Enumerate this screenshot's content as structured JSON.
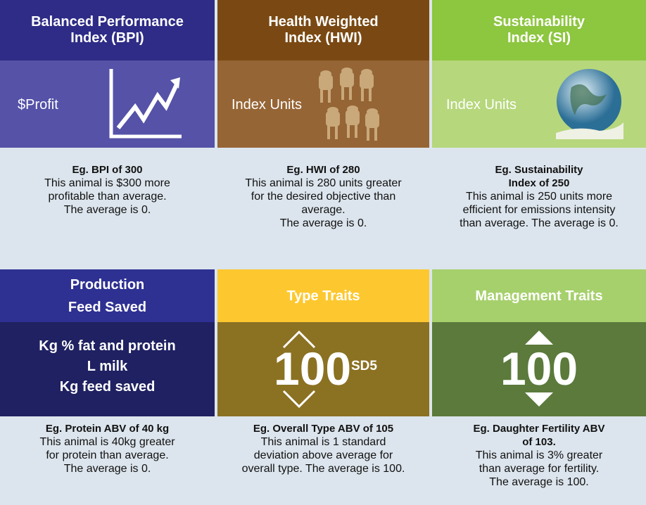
{
  "cards": [
    {
      "title": [
        "Balanced Performance",
        "Index (BPI)"
      ],
      "unit": "$Profit",
      "example": [
        "Eg. BPI of 300"
      ],
      "description": [
        "This animal is $300 more",
        "profitable than average.",
        "The average is 0."
      ]
    },
    {
      "title": [
        "Health Weighted",
        "Index (HWI)"
      ],
      "unit": "Index Units",
      "example": [
        "Eg. HWI of 280"
      ],
      "description": [
        "This animal is 280 units greater",
        "for the desired objective than",
        "average.",
        "The average is 0."
      ]
    },
    {
      "title": [
        "Sustainability",
        "Index (SI)"
      ],
      "unit": "Index Units",
      "example": [
        "Eg. Sustainability",
        "Index of 250"
      ],
      "description": [
        "This animal is 250 units more",
        "efficient for emissions intensity",
        "than average. The average is 0."
      ]
    },
    {
      "title": [
        "Production",
        "Feed Saved"
      ],
      "unit_lines": [
        "Kg % fat and protein",
        "L milk",
        "Kg feed saved"
      ],
      "example": [
        "Eg. Protein ABV of 40 kg"
      ],
      "description": [
        "This animal is 40kg greater",
        "for protein than average.",
        "The average is 0."
      ]
    },
    {
      "title": [
        "Type Traits"
      ],
      "value": "100",
      "sub": "SD5",
      "example": [
        "Eg. Overall Type ABV of 105"
      ],
      "description": [
        "This animal is 1 standard",
        "deviation above average for",
        "overall type. The average is 100."
      ]
    },
    {
      "title": [
        "Management Traits"
      ],
      "value": "100",
      "example": [
        "Eg. Daughter Fertility ABV",
        "of 103."
      ],
      "description": [
        "This animal is 3% greater",
        "than average for fertility.",
        "The average is 100."
      ]
    }
  ]
}
